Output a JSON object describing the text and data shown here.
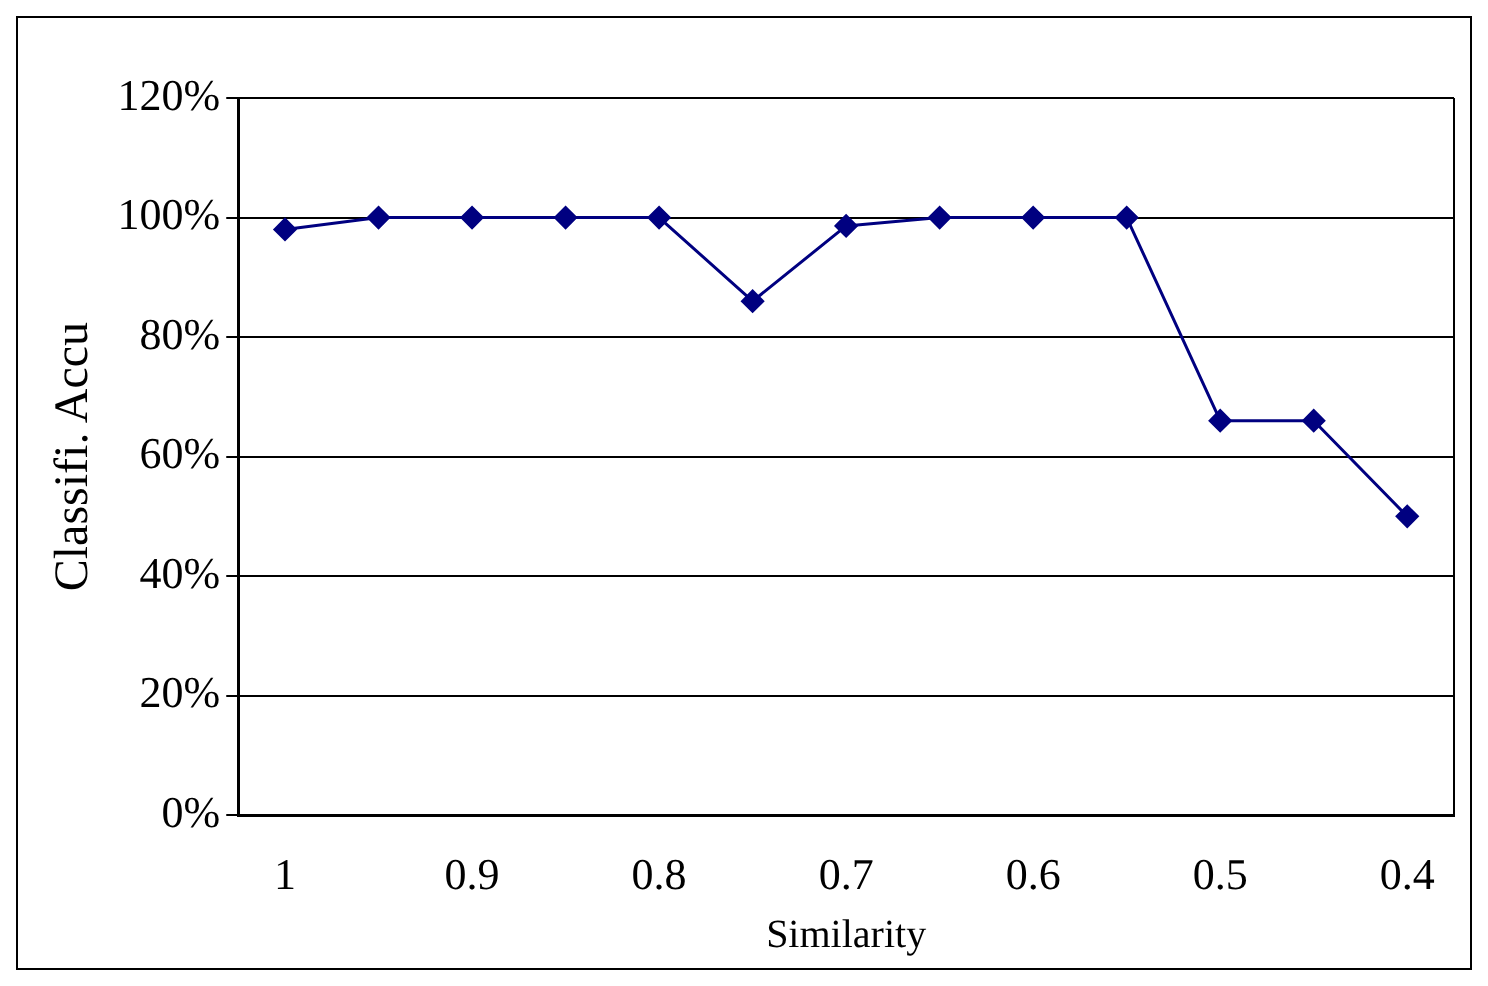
{
  "chart_data": {
    "type": "line",
    "xlabel": "Similarity",
    "ylabel": "Classifi. Accu",
    "categories": [
      "1",
      null,
      "0.9",
      null,
      "0.8",
      null,
      "0.7",
      null,
      "0.6",
      null,
      "0.5",
      null,
      "0.4"
    ],
    "series": [
      {
        "color": "#000080",
        "values": [
          98,
          100,
          100,
          100,
          100,
          86,
          98.6,
          100,
          100,
          100,
          66,
          66,
          50
        ]
      }
    ],
    "ylim": [
      0,
      120
    ],
    "yticks": [
      {
        "value": 0,
        "label": "0%"
      },
      {
        "value": 20,
        "label": "20%"
      },
      {
        "value": 40,
        "label": "40%"
      },
      {
        "value": 60,
        "label": "60%"
      },
      {
        "value": 80,
        "label": "80%"
      },
      {
        "value": 100,
        "label": "100%"
      },
      {
        "value": 120,
        "label": "120%"
      }
    ],
    "grid": "y",
    "legend": false,
    "marker": "diamond",
    "line_style": "solid"
  }
}
